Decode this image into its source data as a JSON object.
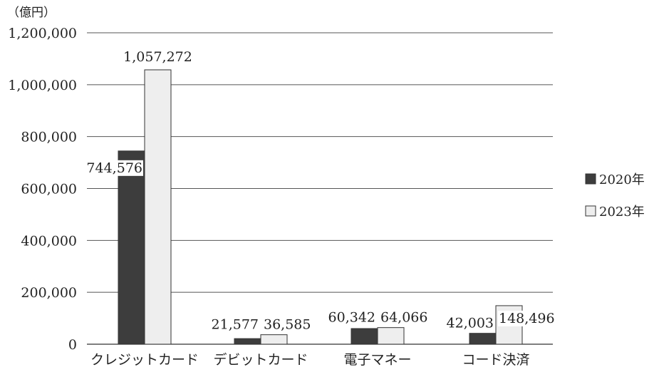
{
  "chart_data": {
    "type": "bar",
    "unit_label": "（億円）",
    "categories": [
      "クレジットカード",
      "デビットカード",
      "電子マネー",
      "コード決済"
    ],
    "series": [
      {
        "name": "2020年",
        "color": "#3d3d3d",
        "values": [
          744576,
          21577,
          60342,
          42003
        ],
        "labels": [
          "744,576",
          "21,577",
          "60,342",
          "42,003"
        ]
      },
      {
        "name": "2023年",
        "color": "#eeeeee",
        "values": [
          1057272,
          36585,
          64066,
          148496
        ],
        "labels": [
          "1,057,272",
          "36,585",
          "64,066",
          "148,496"
        ]
      }
    ],
    "ylim": [
      0,
      1200000
    ],
    "yticks": [
      0,
      200000,
      400000,
      600000,
      800000,
      1000000,
      1200000
    ],
    "ytick_labels": [
      "0",
      "200,000",
      "400,000",
      "600,000",
      "800,000",
      "1,000,000",
      "1,200,000"
    ],
    "grid": true,
    "legend_position": "right"
  }
}
